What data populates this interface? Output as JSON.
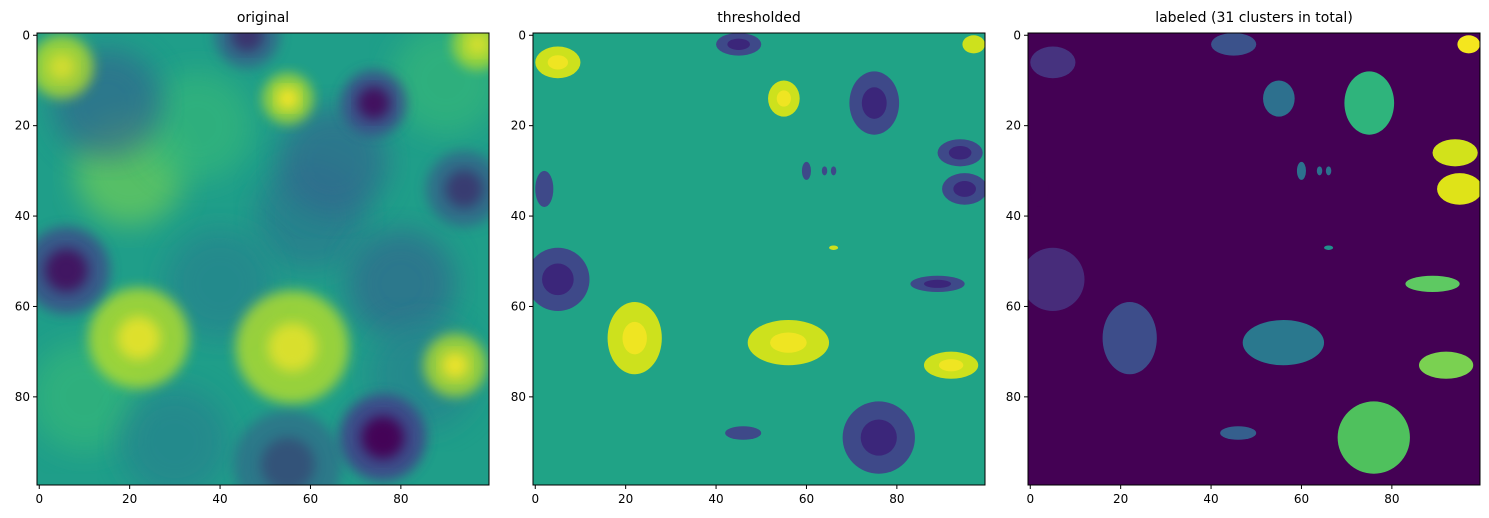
{
  "chart_data": [
    {
      "type": "heatmap",
      "title": "original",
      "xlabel": "",
      "ylabel": "",
      "image_size": [
        100,
        100
      ],
      "xlim": [
        -0.5,
        99.5
      ],
      "ylim": [
        99.5,
        -0.5
      ],
      "xticks": [
        0,
        20,
        40,
        60,
        80
      ],
      "yticks": [
        0,
        20,
        40,
        60,
        80
      ],
      "colormap": "viridis",
      "description_values": "continuous random field, value range ~0 to 1",
      "low_regions": [
        {
          "x": 76,
          "y": 89,
          "r": 8,
          "depth": 0.95
        },
        {
          "x": 74,
          "y": 15,
          "r": 6,
          "depth": 0.8
        },
        {
          "x": 6,
          "y": 52,
          "r": 8,
          "depth": 0.75
        },
        {
          "x": 46,
          "y": 0,
          "r": 6,
          "depth": 0.5
        },
        {
          "x": 94,
          "y": 34,
          "r": 7,
          "depth": 0.45
        },
        {
          "x": 55,
          "y": 95,
          "r": 10,
          "depth": 0.3
        }
      ],
      "high_regions": [
        {
          "x": 55,
          "y": 14,
          "r": 4,
          "height": 0.9
        },
        {
          "x": 22,
          "y": 67,
          "r": 8,
          "height": 0.7
        },
        {
          "x": 56,
          "y": 69,
          "r": 9,
          "height": 0.65
        },
        {
          "x": 92,
          "y": 73,
          "r": 5,
          "height": 0.8
        },
        {
          "x": 5,
          "y": 7,
          "r": 5,
          "height": 0.55
        },
        {
          "x": 97,
          "y": 2,
          "r": 4,
          "height": 0.6
        }
      ]
    },
    {
      "type": "heatmap",
      "title": "thresholded",
      "xlabel": "",
      "ylabel": "",
      "image_size": [
        100,
        100
      ],
      "xlim": [
        -0.5,
        99.5
      ],
      "ylim": [
        99.5,
        -0.5
      ],
      "xticks": [
        0,
        20,
        40,
        60,
        80
      ],
      "yticks": [
        0,
        20,
        40,
        60,
        80
      ],
      "colormap": "viridis",
      "background_color": "#20a386",
      "low_color_scale": true,
      "high_color": "#cde11d"
    },
    {
      "type": "heatmap",
      "title": "labeled (31 clusters in total)",
      "xlabel": "",
      "ylabel": "",
      "image_size": [
        100,
        100
      ],
      "xlim": [
        -0.5,
        99.5
      ],
      "ylim": [
        99.5,
        -0.5
      ],
      "xticks": [
        0,
        20,
        40,
        60,
        80
      ],
      "yticks": [
        0,
        20,
        40,
        60,
        80
      ],
      "colormap": "viridis",
      "cluster_count": 31,
      "background_color": "#440154"
    }
  ],
  "colors": {
    "viridis_stops": [
      "#440154",
      "#482878",
      "#3e4989",
      "#31688e",
      "#26828e",
      "#1f9e89",
      "#35b779",
      "#6ece58",
      "#b5de2b",
      "#fde725"
    ],
    "axis": "#000000",
    "tick_text": "#000000"
  },
  "blobs": {
    "low": [
      {
        "cx": 76,
        "cy": 89,
        "rx": 8,
        "ry": 8,
        "label_color": "#4fc15d"
      },
      {
        "cx": 75,
        "cy": 15,
        "rx": 5.5,
        "ry": 7,
        "label_color": "#2fb47c"
      },
      {
        "cx": 5,
        "cy": 54,
        "rx": 7,
        "ry": 7,
        "label_color": "#472c7a"
      },
      {
        "cx": 45,
        "cy": 2,
        "rx": 5,
        "ry": 2.5,
        "label_color": "#3b528b"
      },
      {
        "cx": 94,
        "cy": 26,
        "rx": 5,
        "ry": 3,
        "label_color": "#d2e21b"
      },
      {
        "cx": 95,
        "cy": 34,
        "rx": 5,
        "ry": 3.5,
        "label_color": "#dfe318"
      },
      {
        "cx": 2,
        "cy": 34,
        "rx": 2,
        "ry": 4,
        "label_color": "#440154"
      },
      {
        "cx": 89,
        "cy": 55,
        "rx": 6,
        "ry": 1.8,
        "label_color": "#5ec962"
      },
      {
        "cx": 46,
        "cy": 88,
        "rx": 4,
        "ry": 1.5,
        "label_color": "#355f8d"
      },
      {
        "cx": 60,
        "cy": 30,
        "rx": 1,
        "ry": 2,
        "label_color": "#2c718e"
      },
      {
        "cx": 64,
        "cy": 30,
        "rx": 0.6,
        "ry": 1,
        "label_color": "#2c718e"
      },
      {
        "cx": 66,
        "cy": 30,
        "rx": 0.6,
        "ry": 1,
        "label_color": "#2c718e"
      }
    ],
    "high": [
      {
        "cx": 22,
        "cy": 67,
        "rx": 6,
        "ry": 8,
        "label_color": "#3d4d8a"
      },
      {
        "cx": 56,
        "cy": 68,
        "rx": 9,
        "ry": 5,
        "label_color": "#2a788e"
      },
      {
        "cx": 55,
        "cy": 14,
        "rx": 3.5,
        "ry": 4,
        "label_color": "#2d708e"
      },
      {
        "cx": 92,
        "cy": 73,
        "rx": 6,
        "ry": 3,
        "label_color": "#7ad151"
      },
      {
        "cx": 5,
        "cy": 6,
        "rx": 5,
        "ry": 3.5,
        "label_color": "#46337f"
      },
      {
        "cx": 97,
        "cy": 2,
        "rx": 2.5,
        "ry": 2,
        "label_color": "#f4e61e"
      },
      {
        "cx": 66,
        "cy": 47,
        "rx": 1,
        "ry": 0.5,
        "label_color": "#21918c"
      }
    ]
  }
}
